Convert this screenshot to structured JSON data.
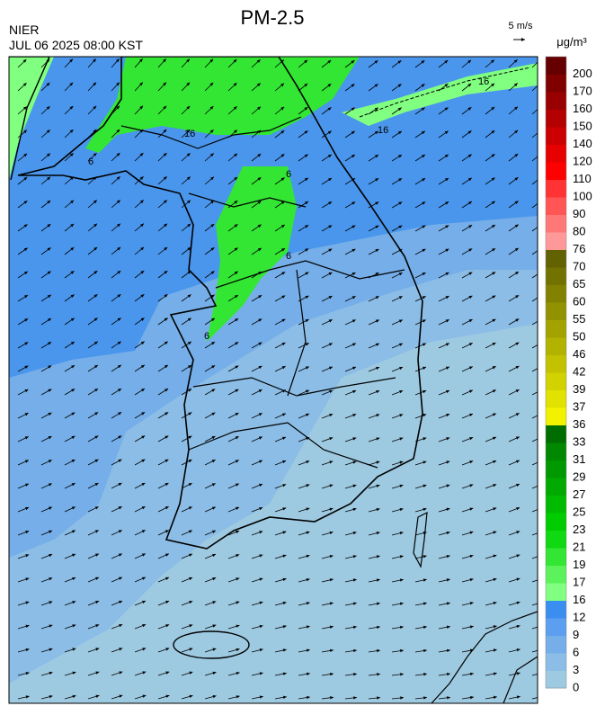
{
  "header": {
    "title": "PM-2.5",
    "agency": "NIER",
    "datetime": "JUL 06 2025 08:00 KST",
    "wind_scale": "5 m/s",
    "unit": "μg/m³"
  },
  "contour_labels": [
    "16",
    "16",
    "16",
    "6",
    "6",
    "6",
    "6"
  ],
  "colorbar": {
    "levels": [
      "0",
      "3",
      "6",
      "9",
      "12",
      "16",
      "17",
      "19",
      "21",
      "23",
      "25",
      "27",
      "29",
      "31",
      "33",
      "36",
      "37",
      "39",
      "42",
      "46",
      "50",
      "55",
      "60",
      "65",
      "70",
      "76",
      "80",
      "90",
      "100",
      "110",
      "120",
      "140",
      "150",
      "160",
      "170",
      "200"
    ],
    "colors": [
      "#9ecae1",
      "#8bbde6",
      "#75aee8",
      "#5c9ff0",
      "#3a8ef0",
      "#80ff80",
      "#5cf25c",
      "#33e633",
      "#11d911",
      "#00cc00",
      "#00bb00",
      "#00aa00",
      "#009900",
      "#008800",
      "#006d00",
      "#f2f200",
      "#e2e200",
      "#d2d200",
      "#c2c200",
      "#b2b200",
      "#a2a200",
      "#929200",
      "#828200",
      "#727200",
      "#626200",
      "#ff9999",
      "#ff7777",
      "#ff5555",
      "#ff3333",
      "#ff0000",
      "#e60000",
      "#cc0000",
      "#b30000",
      "#990000",
      "#800000",
      "#660000"
    ]
  }
}
